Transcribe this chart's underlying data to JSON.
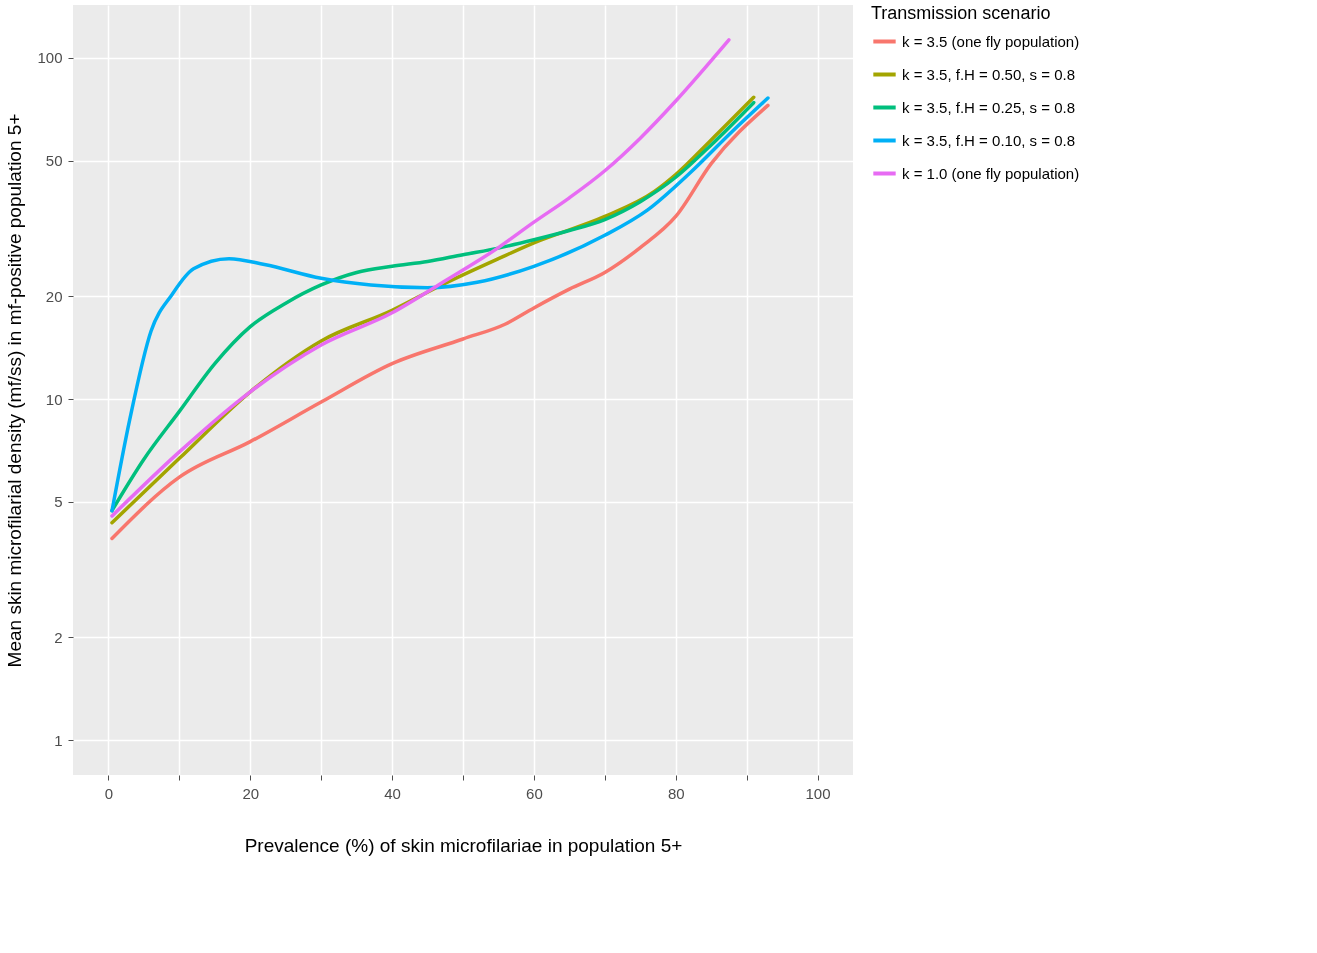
{
  "chart_data": {
    "type": "line",
    "xlabel": "Prevalence (%) of skin microfilariae in population 5+",
    "ylabel": "Mean skin microfilarial density (mf/ss) in mf-positive population 5+",
    "legend_title": "Transmission scenario",
    "legend": "right",
    "grid": true,
    "log": "y",
    "line_style": "solid",
    "marker": "none",
    "xlim": [
      -5,
      105
    ],
    "xticks": [
      0,
      {
        "value": 10,
        "label": null
      },
      20,
      {
        "value": 30,
        "label": null
      },
      40,
      {
        "value": 50,
        "label": null
      },
      60,
      {
        "value": 70,
        "label": null
      },
      80,
      {
        "value": 90,
        "label": null
      },
      100
    ],
    "ylim": [
      0.79,
      143
    ],
    "yticks": [
      1,
      2,
      5,
      10,
      20,
      50,
      100
    ],
    "series": [
      {
        "name": "k = 3.5 (one fly population)",
        "color": "#f8766d",
        "x": [
          0.5,
          10,
          20,
          30,
          40,
          50,
          56,
          60,
          65,
          70,
          75,
          80,
          85,
          93
        ],
        "values": [
          3.9,
          5.9,
          7.5,
          9.8,
          12.7,
          15.0,
          16.6,
          18.5,
          21,
          23.5,
          27.8,
          34.3,
          49,
          72.6
        ]
      },
      {
        "name": "k = 3.5, f.H = 0.50, s = 0.8",
        "color": "#a3a500",
        "x": [
          0.5,
          10,
          20,
          30,
          40,
          47,
          55,
          60,
          70,
          77,
          80,
          85,
          91
        ],
        "values": [
          4.34,
          6.7,
          10.5,
          14.8,
          18.2,
          21.6,
          25.8,
          28.7,
          34.3,
          40.6,
          45.5,
          57.5,
          76.7
        ]
      },
      {
        "name": "k = 3.5, f.H = 0.25, s = 0.8",
        "color": "#00bf7d",
        "x": [
          0.5,
          5,
          10,
          15,
          20,
          25,
          30,
          35,
          40,
          45,
          50,
          55,
          60,
          65,
          70,
          75,
          80,
          85,
          91
        ],
        "values": [
          4.71,
          6.66,
          9.2,
          12.7,
          16.3,
          19.1,
          21.6,
          23.5,
          24.5,
          25.3,
          26.5,
          27.7,
          29.3,
          31.2,
          33.6,
          37.9,
          44.7,
          55.6,
          74
        ]
      },
      {
        "name": "k = 3.5, f.H = 0.10, s = 0.8",
        "color": "#00b0f6",
        "x": [
          0.5,
          3,
          6,
          9,
          12,
          17,
          22,
          30,
          37,
          45,
          52,
          60,
          70,
          76,
          82,
          88,
          93
        ],
        "values": [
          4.7,
          8.7,
          15.8,
          20.3,
          24.1,
          25.8,
          24.8,
          22.6,
          21.6,
          21.2,
          22.0,
          24.5,
          30.2,
          35.8,
          46,
          61,
          76.3
        ]
      },
      {
        "name": "k = 1.0 (one fly population)",
        "color": "#e76bf3",
        "x": [
          0.5,
          10,
          20,
          30,
          40,
          47,
          55,
          60,
          65,
          70,
          75,
          80,
          87.5
        ],
        "values": [
          4.54,
          7.0,
          10.5,
          14.4,
          17.9,
          21.9,
          27.8,
          33,
          38.9,
          46.7,
          58.2,
          74.8,
          113
        ]
      }
    ]
  }
}
